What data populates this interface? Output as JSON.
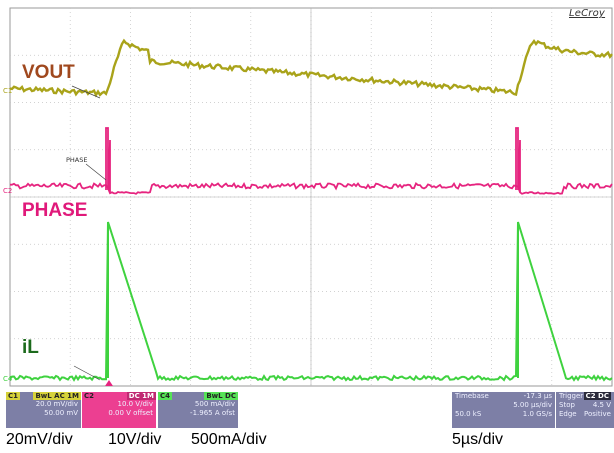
{
  "brand": "LeCroy",
  "traces": {
    "vout": {
      "label": "VOUT",
      "color": "#a9a31a"
    },
    "phase": {
      "label": "PHASE",
      "color": "#e6247f"
    },
    "il": {
      "label": "iL",
      "color": "#3fd23f"
    }
  },
  "small_labels": {
    "phase": "PHASE"
  },
  "markers": {
    "c1": "C1",
    "c2": "C2",
    "c4": "C4"
  },
  "channels": [
    {
      "tag": "C1",
      "tag_color": "#d6d23a",
      "mode": "BwL AC 1M",
      "scale": "20.0 mV/div",
      "offset": "50.00 mV"
    },
    {
      "tag": "C2",
      "tag_color": "#ec3f91",
      "mode": "DC 1M",
      "scale": "10.0 V/div",
      "offset": "0.00 V offset"
    },
    {
      "tag": "C4",
      "tag_color": "#56e356",
      "mode": "BwL DC",
      "scale": "500 mA/div",
      "offset": "-1.965 A ofst"
    }
  ],
  "timebase": {
    "title": "Timebase",
    "delay": "-17.3 µs",
    "div": "5.00 µs/div",
    "samples": "50.0 kS",
    "rate": "1.0 GS/s"
  },
  "trigger": {
    "title": "Trigger",
    "source": "C2 DC",
    "mode": "Stop",
    "level": "4.5 V",
    "type": "Edge",
    "slope": "Positive"
  },
  "scale_captions": {
    "c1": "20mV/div",
    "c2": "10V/div",
    "c4": "500mA/div",
    "time": "5µs/div"
  }
}
